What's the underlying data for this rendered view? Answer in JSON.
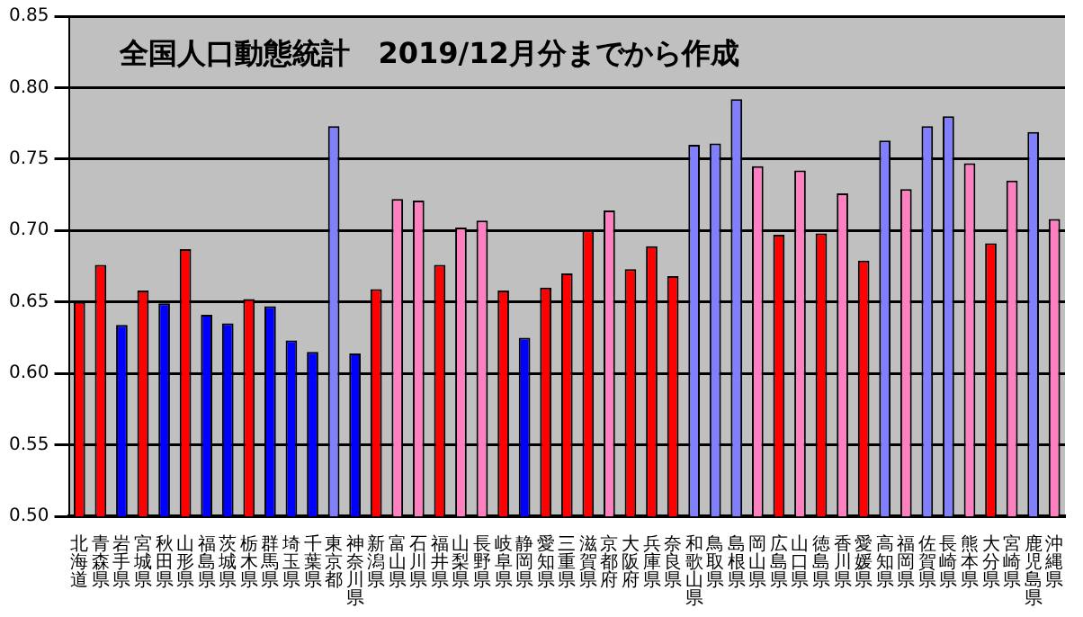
{
  "chart_data": {
    "type": "bar",
    "title": "全国人口動態統計　2019/12月分までから作成",
    "categories": [
      "北海道",
      "青森県",
      "岩手県",
      "宮城県",
      "秋田県",
      "山形県",
      "福島県",
      "茨城県",
      "栃木県",
      "群馬県",
      "埼玉県",
      "千葉県",
      "東京都",
      "神奈川県",
      "新潟県",
      "富山県",
      "石川県",
      "福井県",
      "山梨県",
      "長野県",
      "岐阜県",
      "静岡県",
      "愛知県",
      "三重県",
      "滋賀県",
      "京都府",
      "大阪府",
      "兵庫県",
      "奈良県",
      "和歌山県",
      "鳥取県",
      "島根県",
      "岡山県",
      "広島県",
      "山口県",
      "徳島県",
      "香川県",
      "愛媛県",
      "高知県",
      "福岡県",
      "佐賀県",
      "長崎県",
      "熊本県",
      "大分県",
      "宮崎県",
      "鹿児島県",
      "沖縄県"
    ],
    "values": [
      0.65,
      0.676,
      0.634,
      0.658,
      0.649,
      0.687,
      0.641,
      0.635,
      0.652,
      0.647,
      0.623,
      0.615,
      0.773,
      0.614,
      0.659,
      0.722,
      0.721,
      0.676,
      0.702,
      0.707,
      0.658,
      0.625,
      0.66,
      0.67,
      0.7,
      0.714,
      0.673,
      0.689,
      0.668,
      0.76,
      0.761,
      0.792,
      0.745,
      0.697,
      0.742,
      0.698,
      0.726,
      0.679,
      0.763,
      0.729,
      0.773,
      0.78,
      0.747,
      0.691,
      0.735,
      0.769,
      0.708
    ],
    "colors": [
      "#ff0000",
      "#ff0000",
      "#0000ff",
      "#ff0000",
      "#0000ff",
      "#ff0000",
      "#0000ff",
      "#0000ff",
      "#ff0000",
      "#0000ff",
      "#0000ff",
      "#0000ff",
      "#8080ff",
      "#0000ff",
      "#ff0000",
      "#ff80c0",
      "#ff80c0",
      "#ff0000",
      "#ff80c0",
      "#ff80c0",
      "#ff0000",
      "#0000ff",
      "#ff0000",
      "#ff0000",
      "#ff0000",
      "#ff80c0",
      "#ff0000",
      "#ff0000",
      "#ff0000",
      "#8080ff",
      "#8080ff",
      "#8080ff",
      "#ff80c0",
      "#ff0000",
      "#ff80c0",
      "#ff0000",
      "#ff80c0",
      "#ff0000",
      "#8080ff",
      "#ff80c0",
      "#8080ff",
      "#8080ff",
      "#ff80c0",
      "#ff0000",
      "#ff80c0",
      "#8080ff",
      "#ff80c0"
    ],
    "ylim": [
      0.5,
      0.85
    ],
    "yticks": [
      {
        "value": 0.5,
        "label": "0.50"
      },
      {
        "value": 0.55,
        "label": "0.55"
      },
      {
        "value": 0.6,
        "label": "0.60"
      },
      {
        "value": 0.65,
        "label": "0.65"
      },
      {
        "value": 0.7,
        "label": "0.70"
      },
      {
        "value": 0.75,
        "label": "0.75"
      },
      {
        "value": 0.8,
        "label": "0.80"
      },
      {
        "value": 0.85,
        "label": "0.85"
      }
    ],
    "grid": "y",
    "legend": false
  }
}
